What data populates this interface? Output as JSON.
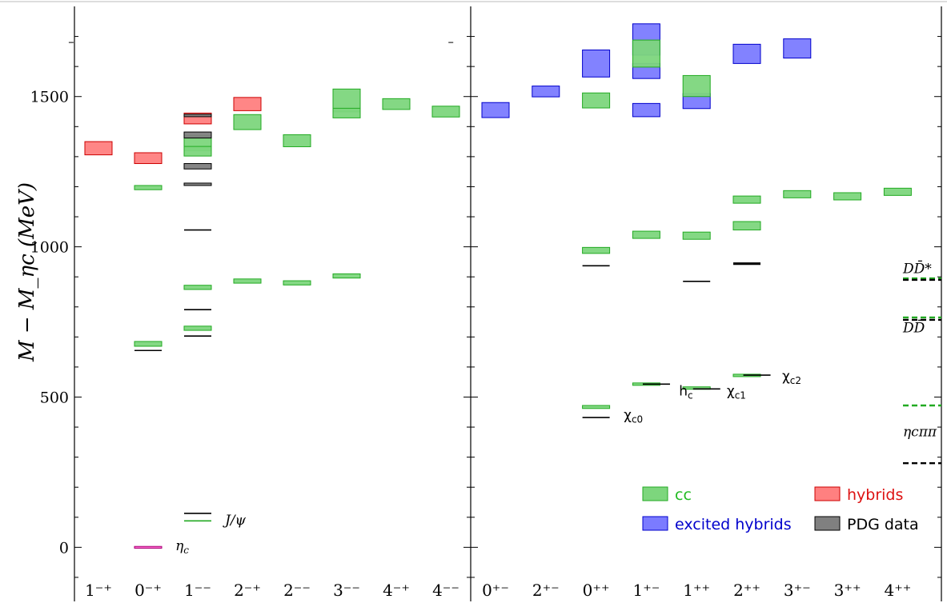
{
  "chart_data": {
    "type": "box-levels",
    "title": "",
    "ylabel": "M − M_ηc (MeV)",
    "ylim": [
      -180,
      1800
    ],
    "yticks": [
      0,
      500,
      1000,
      1500
    ],
    "panels": [
      {
        "categories": [
          "1⁻⁺",
          "0⁻⁺",
          "1⁻⁻",
          "2⁻⁺",
          "2⁻⁻",
          "3⁻⁻",
          "4⁻⁺",
          "4⁻⁻"
        ],
        "boxes": [
          {
            "cat": 0,
            "type": "hybrids",
            "y": 1328,
            "err": 22,
            "w": 0.5
          },
          {
            "cat": 1,
            "type": "hybrids",
            "y": 1295,
            "err": 18,
            "w": 0.5
          },
          {
            "cat": 2,
            "type": "hybrids",
            "y": 1427,
            "err": 18,
            "w": 0.5
          },
          {
            "cat": 3,
            "type": "hybrids",
            "y": 1475,
            "err": 22,
            "w": 0.5
          },
          {
            "cat": 1,
            "type": "cc",
            "y": 1197,
            "err": 7,
            "w": 0.5
          },
          {
            "cat": 1,
            "type": "cc",
            "y": 677,
            "err": 8,
            "w": 0.5
          },
          {
            "cat": 2,
            "type": "cc",
            "y": 1345,
            "err": 25,
            "w": 0.5
          },
          {
            "cat": 2,
            "type": "cc",
            "y": 1318,
            "err": 16,
            "w": 0.5
          },
          {
            "cat": 2,
            "type": "cc",
            "y": 865,
            "err": 7,
            "w": 0.5
          },
          {
            "cat": 2,
            "type": "cc",
            "y": 729,
            "err": 7,
            "w": 0.5
          },
          {
            "cat": 3,
            "type": "cc",
            "y": 1415,
            "err": 25,
            "w": 0.5
          },
          {
            "cat": 3,
            "type": "cc",
            "y": 886,
            "err": 7,
            "w": 0.5
          },
          {
            "cat": 4,
            "type": "cc",
            "y": 1353,
            "err": 20,
            "w": 0.5
          },
          {
            "cat": 4,
            "type": "cc",
            "y": 880,
            "err": 7,
            "w": 0.5
          },
          {
            "cat": 5,
            "type": "cc",
            "y": 1487,
            "err": 38,
            "w": 0.5
          },
          {
            "cat": 5,
            "type": "cc",
            "y": 1445,
            "err": 16,
            "w": 0.5
          },
          {
            "cat": 5,
            "type": "cc",
            "y": 903,
            "err": 7,
            "w": 0.5
          },
          {
            "cat": 6,
            "type": "cc",
            "y": 1475,
            "err": 18,
            "w": 0.5
          },
          {
            "cat": 7,
            "type": "cc",
            "y": 1450,
            "err": 18,
            "w": 0.5
          },
          {
            "cat": 1,
            "type": "etac",
            "y": 0,
            "err": 3,
            "w": 0.5
          },
          {
            "cat": 2,
            "type": "PDG data",
            "y": 1372,
            "err": 10,
            "w": 0.5
          },
          {
            "cat": 2,
            "type": "PDG data",
            "y": 1268,
            "err": 9,
            "w": 0.5
          },
          {
            "cat": 2,
            "type": "PDG data",
            "y": 1437,
            "err": 4,
            "w": 0.5
          },
          {
            "cat": 2,
            "type": "PDG data",
            "y": 1208,
            "err": 4,
            "w": 0.5
          }
        ],
        "lines": [
          {
            "cat": 1,
            "y": 655
          },
          {
            "cat": 2,
            "y": 1056
          },
          {
            "cat": 2,
            "y": 791
          },
          {
            "cat": 2,
            "y": 703
          },
          {
            "cat": 2,
            "y": 113
          },
          {
            "cat": 2,
            "y": 88,
            "color": "#22aa22"
          }
        ],
        "labels": [
          {
            "text": "J/ψ",
            "cat": 2,
            "dx": 0.55,
            "y": 75,
            "italic": true
          },
          {
            "text": "η",
            "sub": "c",
            "cat": 1,
            "dx": 0.55,
            "y": -10,
            "italic": true
          }
        ],
        "edge_ticks": [
          {
            "cat": -0.55,
            "y": 1680
          },
          {
            "cat": 7.1,
            "y": 1680
          }
        ]
      },
      {
        "categories": [
          "0⁺⁻",
          "2⁺⁻",
          "0⁺⁺",
          "1⁺⁻",
          "1⁺⁺",
          "2⁺⁺",
          "3⁺⁻",
          "3⁺⁺",
          "4⁺⁺"
        ],
        "boxes": [
          {
            "cat": 0,
            "type": "excited hybrids",
            "y": 1455,
            "err": 25,
            "w": 0.5
          },
          {
            "cat": 1,
            "type": "excited hybrids",
            "y": 1517,
            "err": 18,
            "w": 0.5
          },
          {
            "cat": 2,
            "type": "excited hybrids",
            "y": 1610,
            "err": 45,
            "w": 0.5
          },
          {
            "cat": 3,
            "type": "excited hybrids",
            "y": 1690,
            "err": 52,
            "w": 0.5
          },
          {
            "cat": 3,
            "type": "excited hybrids",
            "y": 1585,
            "err": 25,
            "w": 0.5
          },
          {
            "cat": 3,
            "type": "excited hybrids",
            "y": 1455,
            "err": 22,
            "w": 0.5
          },
          {
            "cat": 4,
            "type": "excited hybrids",
            "y": 1485,
            "err": 25,
            "w": 0.5
          },
          {
            "cat": 5,
            "type": "excited hybrids",
            "y": 1642,
            "err": 32,
            "w": 0.5
          },
          {
            "cat": 6,
            "type": "excited hybrids",
            "y": 1660,
            "err": 32,
            "w": 0.5
          },
          {
            "cat": 3,
            "type": "cc",
            "y": 1643,
            "err": 45,
            "w": 0.5
          },
          {
            "cat": 4,
            "type": "cc",
            "y": 1535,
            "err": 35,
            "w": 0.5
          },
          {
            "cat": 2,
            "type": "cc",
            "y": 1487,
            "err": 25,
            "w": 0.5
          },
          {
            "cat": 2,
            "type": "cc",
            "y": 988,
            "err": 10,
            "w": 0.5
          },
          {
            "cat": 3,
            "type": "cc",
            "y": 1040,
            "err": 12,
            "w": 0.5
          },
          {
            "cat": 4,
            "type": "cc",
            "y": 1037,
            "err": 12,
            "w": 0.5
          },
          {
            "cat": 5,
            "type": "cc",
            "y": 1157,
            "err": 12,
            "w": 0.5
          },
          {
            "cat": 5,
            "type": "cc",
            "y": 1070,
            "err": 14,
            "w": 0.5
          },
          {
            "cat": 6,
            "type": "cc",
            "y": 1175,
            "err": 12,
            "w": 0.5
          },
          {
            "cat": 7,
            "type": "cc",
            "y": 1168,
            "err": 12,
            "w": 0.5
          },
          {
            "cat": 8,
            "type": "cc",
            "y": 1183,
            "err": 12,
            "w": 0.5
          },
          {
            "cat": 2,
            "type": "cc",
            "y": 467,
            "err": 5,
            "w": 0.5
          },
          {
            "cat": 3,
            "type": "cc",
            "y": 543,
            "err": 4,
            "w": 0.5
          },
          {
            "cat": 4,
            "type": "cc",
            "y": 530,
            "err": 4,
            "w": 0.5
          },
          {
            "cat": 5,
            "type": "cc",
            "y": 572,
            "err": 4,
            "w": 0.5
          }
        ],
        "lines": [
          {
            "cat": 2,
            "y": 937
          },
          {
            "cat": 2,
            "y": 432
          },
          {
            "cat": 3,
            "dx": 0.2,
            "y": 543
          },
          {
            "cat": 4,
            "y": 885
          },
          {
            "cat": 4,
            "dx": 0.2,
            "y": 527
          },
          {
            "cat": 5,
            "y": 946
          },
          {
            "cat": 5,
            "y": 942
          },
          {
            "cat": 5,
            "dx": 0.2,
            "y": 573
          }
        ],
        "labels": [
          {
            "text": "χ",
            "sub": "c0",
            "cat": 2,
            "dx": 0.55,
            "y": 425
          },
          {
            "text": "h",
            "sub": "c",
            "cat": 3,
            "dx": 0.65,
            "y": 505
          },
          {
            "text": "χ",
            "sub": "c1",
            "cat": 4,
            "dx": 0.6,
            "y": 505
          },
          {
            "text": "χ",
            "sub": "c2",
            "cat": 5,
            "dx": 0.7,
            "y": 555
          }
        ],
        "thresholds": [
          {
            "y": 895,
            "color": "#22aa22"
          },
          {
            "y": 890,
            "color": "#000000"
          },
          {
            "y": 765,
            "color": "#22aa22"
          },
          {
            "y": 757,
            "color": "#000000"
          },
          {
            "y": 472,
            "color": "#22aa22"
          },
          {
            "y": 280,
            "color": "#000000"
          }
        ],
        "threshold_labels": [
          {
            "text": "DD̄*",
            "y": 912
          },
          {
            "text": "DD̄",
            "y": 715
          },
          {
            "text": "ηcππ",
            "y": 370
          }
        ]
      }
    ],
    "legend": [
      {
        "label": "cc",
        "type": "cc"
      },
      {
        "label": "hybrids",
        "type": "hybrids"
      },
      {
        "label": "excited hybrids",
        "type": "excited hybrids"
      },
      {
        "label": "PDG data",
        "type": "PDG data"
      }
    ],
    "legend_placement": "bottom-right",
    "colors": {
      "cc_fill": "#7dd67d",
      "cc_stroke": "#22aa22",
      "cc_text": "#22bb22",
      "hybrids_fill": "#ff8080",
      "hybrids_stroke": "#cc0000",
      "hybrids_text": "#dd1111",
      "excited_fill": "#7b7bff",
      "excited_stroke": "#0000cc",
      "excited_text": "#0000cc",
      "pdg_fill": "#808080",
      "pdg_stroke": "#000000",
      "pdg_text": "#000000",
      "etac_fill": "#ff66cc",
      "etac_stroke": "#aa0077"
    },
    "grid": false
  }
}
